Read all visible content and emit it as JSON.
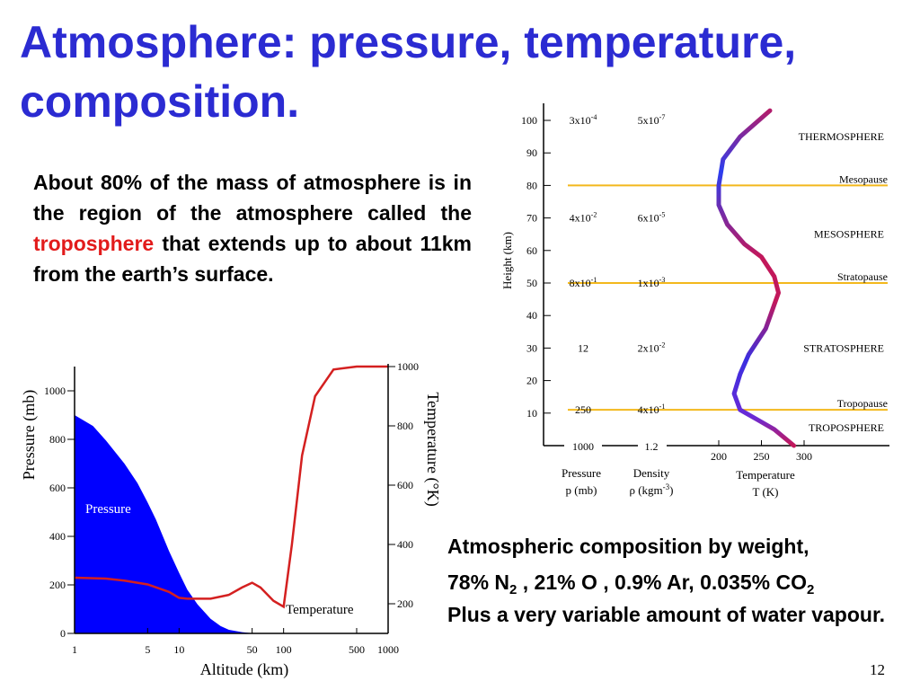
{
  "slide": {
    "title_line1": "Atmosphere: pressure, temperature,",
    "title_line2": "composition.",
    "intro_before": "About 80% of the mass of atmosphere is in the region of the atmosphere called the ",
    "intro_highlight": "troposphere",
    "intro_after": " that extends up to about 11km from the earth’s surface.",
    "composition": {
      "heading": "Atmospheric composition by weight,",
      "n2_text": "78% N",
      "n2_sub": "2",
      "mid_text": " , 21% O , 0.9% Ar, 0.035% CO",
      "co2_sub": "2",
      "line3": "Plus a very variable amount of water vapour."
    },
    "slide_number": "12",
    "colors": {
      "title": "#2b2bd2",
      "highlight": "#e21b1b",
      "pressure_fill": "#0000ff",
      "temperature_line": "#d42020",
      "layer_boundary": "#f3b81c"
    }
  },
  "chart_data": [
    {
      "type": "area",
      "x_scale": "log",
      "xlim": [
        1,
        1000
      ],
      "xlabel": "Altitude (km)",
      "x_ticks": [
        1,
        5,
        10,
        50,
        100,
        500,
        1000
      ],
      "ylabel_left": "Pressure (mb)",
      "ylim_left": [
        0,
        1100
      ],
      "y_ticks_left": [
        0,
        200,
        400,
        600,
        800,
        1000
      ],
      "ylabel_right": "Temperature (°K)",
      "ylim_right": [
        100,
        1000
      ],
      "y_ticks_right": [
        200,
        400,
        600,
        800,
        1000
      ],
      "series": [
        {
          "name": "Pressure",
          "axis": "left",
          "x": [
            1,
            1.5,
            2,
            3,
            4,
            5,
            6,
            8,
            10,
            12,
            15,
            20,
            25,
            30,
            40,
            50
          ],
          "values": [
            900,
            855,
            795,
            700,
            620,
            540,
            470,
            340,
            250,
            180,
            120,
            60,
            30,
            15,
            5,
            1
          ]
        },
        {
          "name": "Temperature",
          "axis": "right",
          "x": [
            1,
            2,
            3,
            5,
            8,
            10,
            12,
            20,
            30,
            40,
            50,
            60,
            80,
            100,
            120,
            150,
            200,
            300,
            500,
            1000
          ],
          "values": [
            288,
            285,
            278,
            265,
            240,
            220,
            217,
            217,
            230,
            255,
            271,
            255,
            210,
            190,
            400,
            700,
            900,
            990,
            1000,
            1000
          ]
        }
      ]
    },
    {
      "type": "line",
      "ylabel": "Height (km)",
      "ylim": [
        0,
        105
      ],
      "y_ticks": [
        10,
        20,
        30,
        40,
        50,
        60,
        70,
        80,
        90,
        100
      ],
      "xlabel": "Temperature T (K)",
      "xlim": [
        150,
        310
      ],
      "x_ticks": [
        200,
        250,
        300
      ],
      "series": [
        {
          "name": "Temperature",
          "x": [
            288,
            265,
            245,
            225,
            218,
            225,
            235,
            255,
            270,
            265,
            250,
            230,
            210,
            200,
            200,
            205,
            225,
            260
          ],
          "values": [
            0,
            5,
            8,
            11,
            16,
            22,
            28,
            36,
            47,
            52,
            58,
            62,
            68,
            74,
            80,
            88,
            95,
            103
          ]
        }
      ],
      "boundaries": [
        {
          "label": "Tropopause",
          "height": 11
        },
        {
          "label": "Stratopause",
          "height": 50
        },
        {
          "label": "Mesopause",
          "height": 80
        }
      ],
      "layers": [
        {
          "label": "TROPOSPHERE",
          "y_pos": 5.5
        },
        {
          "label": "STRATOSPHERE",
          "y_pos": 30
        },
        {
          "label": "MESOSPHERE",
          "y_pos": 65
        },
        {
          "label": "THERMOSPHERE",
          "y_pos": 95
        }
      ],
      "columns": [
        {
          "label_line1": "Pressure",
          "label_line2": "p (mb)"
        },
        {
          "label_line1": "Density",
          "label_line2_text": "ρ (kgm",
          "label_line2_sup": "-3",
          "label_line2_end": ")"
        }
      ],
      "table_rows": [
        {
          "height": 100,
          "pressure": "3x10",
          "pressure_exp": "-4",
          "density": "5x10",
          "density_exp": "-7"
        },
        {
          "height": 70,
          "pressure": "4x10",
          "pressure_exp": "-2",
          "density": "6x10",
          "density_exp": "-5"
        },
        {
          "height": 50,
          "pressure": "8x10",
          "pressure_exp": "-1",
          "density": "1x10",
          "density_exp": "-3"
        },
        {
          "height": 30,
          "pressure": "12",
          "pressure_exp": "",
          "density": "2x10",
          "density_exp": "-2"
        },
        {
          "height": 11,
          "pressure": "250",
          "pressure_exp": "",
          "density": "4x10",
          "density_exp": "-1"
        },
        {
          "height": 0,
          "pressure": "1000",
          "pressure_exp": "",
          "density": "1.2",
          "density_exp": ""
        }
      ]
    }
  ]
}
